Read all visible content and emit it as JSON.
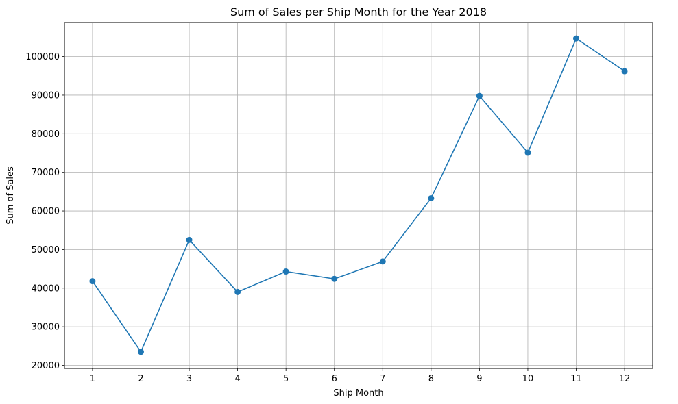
{
  "chart_data": {
    "type": "line",
    "title": "Sum of Sales per Ship Month for the Year 2018",
    "xlabel": "Ship Month",
    "ylabel": "Sum of Sales",
    "x": [
      1,
      2,
      3,
      4,
      5,
      6,
      7,
      8,
      9,
      10,
      11,
      12
    ],
    "series": [
      {
        "values": [
          41800,
          23500,
          52500,
          39000,
          44300,
          42400,
          46900,
          63300,
          89800,
          75100,
          104700,
          96200
        ]
      }
    ],
    "xticks": [
      "1",
      "2",
      "3",
      "4",
      "5",
      "6",
      "7",
      "8",
      "9",
      "10",
      "11",
      "12"
    ],
    "yticks": [
      "20000",
      "30000",
      "40000",
      "50000",
      "60000",
      "70000",
      "80000",
      "90000",
      "100000"
    ],
    "ylim": [
      19200,
      108800
    ],
    "xlim": [
      0.42,
      12.58
    ],
    "grid": true,
    "colors": {
      "line": "#1f77b4",
      "grid": "#b0b0b0",
      "axis": "#000000"
    }
  }
}
